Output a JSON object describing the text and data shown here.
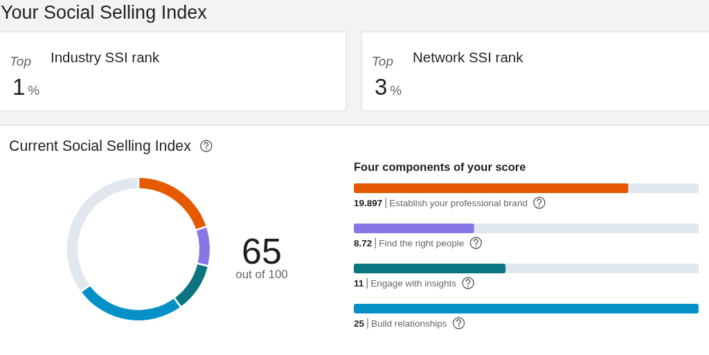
{
  "chart_data": [
    {
      "type": "other",
      "title": "Your Social Selling Index"
    },
    {
      "type": "other",
      "title": "Industry SSI rank",
      "annotations": [
        "Top",
        "1",
        "%"
      ]
    },
    {
      "type": "other",
      "title": "Network SSI rank",
      "annotations": [
        "Top",
        "3",
        "%"
      ]
    },
    {
      "type": "donut",
      "title": "Current Social Selling Index",
      "categories": [
        null,
        null,
        null,
        null,
        null
      ],
      "values": [
        19.897,
        8.72,
        11,
        25,
        35.383
      ],
      "colors": [
        "#e55a00",
        "#8777e6",
        "#0b7582",
        "#0590c8",
        "#e0e7ee"
      ],
      "annotations": [
        "65",
        "out of 100"
      ]
    },
    {
      "type": "bar",
      "orientation": "horizontal",
      "title": "Four components of your score",
      "categories": [
        "Establish your professional brand",
        "Find the right people",
        "Engage with insights",
        "Build relationships"
      ],
      "values": [
        19.897,
        8.72,
        11,
        25
      ],
      "colors": [
        "#e55a00",
        "#8777e6",
        "#0b7582",
        "#0590c8"
      ],
      "data_labels": true,
      "tick_labels": "y"
    }
  ]
}
